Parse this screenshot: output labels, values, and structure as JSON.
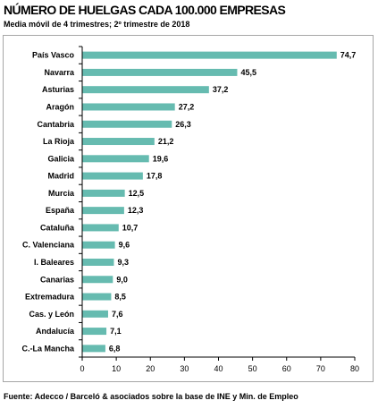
{
  "header": {
    "title": "NÚMERO DE HUELGAS CADA 100.000 EMPRESAS",
    "subtitle": "Media móvil de 4 trimestres; 2º trimestre de 2018"
  },
  "footer": {
    "source": "Fuente: Adecco / Barceló & asociados sobre la base de INE y Min. de Empleo"
  },
  "colors": {
    "bar": "#66bbb0",
    "axis": "#000000"
  },
  "chart_data": {
    "type": "bar",
    "orientation": "horizontal",
    "categories": [
      "País Vasco",
      "Navarra",
      "Asturias",
      "Aragón",
      "Cantabria",
      "La Rioja",
      "Galicia",
      "Madrid",
      "Murcia",
      "España",
      "Cataluña",
      "C. Valenciana",
      "I. Baleares",
      "Canarias",
      "Extremadura",
      "Cas. y León",
      "Andalucía",
      "C.-La Mancha"
    ],
    "values": [
      74.7,
      45.5,
      37.2,
      27.2,
      26.3,
      21.2,
      19.6,
      17.8,
      12.5,
      12.3,
      10.7,
      9.6,
      9.3,
      9.0,
      8.5,
      7.6,
      7.1,
      6.8
    ],
    "value_labels": [
      "74,7",
      "45,5",
      "37,2",
      "27,2",
      "26,3",
      "21,2",
      "19,6",
      "17,8",
      "12,5",
      "12,3",
      "10,7",
      "9,6",
      "9,3",
      "9,0",
      "8,5",
      "7,6",
      "7,1",
      "6,8"
    ],
    "xlim": [
      0,
      80
    ],
    "xticks": [
      0,
      10,
      20,
      30,
      40,
      50,
      60,
      70,
      80
    ],
    "xtick_labels": [
      "0",
      "10",
      "20",
      "30",
      "40",
      "50",
      "60",
      "70",
      "80"
    ],
    "grid": false,
    "legend": "none"
  }
}
